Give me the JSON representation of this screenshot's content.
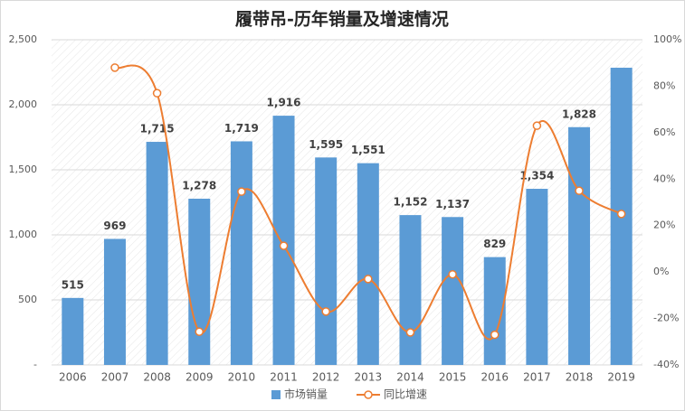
{
  "chart_data": {
    "type": "bar",
    "title": "履带吊-历年销量及增速情况",
    "categories": [
      "2006",
      "2007",
      "2008",
      "2009",
      "2010",
      "2011",
      "2012",
      "2013",
      "2014",
      "2015",
      "2016",
      "2017",
      "2018",
      "2019"
    ],
    "series": [
      {
        "name": "市场销量",
        "type": "bar",
        "color": "#5b9bd5",
        "values": [
          515,
          969,
          1715,
          1278,
          1719,
          1916,
          1595,
          1551,
          1152,
          1137,
          829,
          1354,
          1828,
          2285
        ],
        "value_labels": [
          "515",
          "969",
          "1,715",
          "1,278",
          "1,719",
          "1,916",
          "1,595",
          "1,551",
          "1,152",
          "1,137",
          "829",
          "1,354",
          "1,828",
          null
        ]
      },
      {
        "name": "同比增速",
        "type": "line",
        "axis": "y2",
        "color": "#ed7d31",
        "values": [
          null,
          88,
          77,
          -25.7,
          34.6,
          11.3,
          -17,
          -3,
          -26,
          -1,
          -27,
          63,
          35,
          25
        ]
      }
    ],
    "ylim": [
      0,
      2500
    ],
    "yticks": [
      {
        "value": 0,
        "label": "-"
      },
      500,
      {
        "value": 1000,
        "label": "1,000"
      },
      {
        "value": 1500,
        "label": "1,500"
      },
      {
        "value": 2000,
        "label": "2,000"
      },
      {
        "value": 2500,
        "label": "2,500"
      }
    ],
    "y2lim": [
      -40,
      100
    ],
    "y2ticks": [
      {
        "value": -40,
        "label": "-40%"
      },
      {
        "value": -20,
        "label": "-20%"
      },
      {
        "value": 0,
        "label": "0%"
      },
      {
        "value": 20,
        "label": "20%"
      },
      {
        "value": 40,
        "label": "40%"
      },
      {
        "value": 60,
        "label": "60%"
      },
      {
        "value": 80,
        "label": "80%"
      },
      {
        "value": 100,
        "label": "100%"
      }
    ],
    "grid": true
  }
}
